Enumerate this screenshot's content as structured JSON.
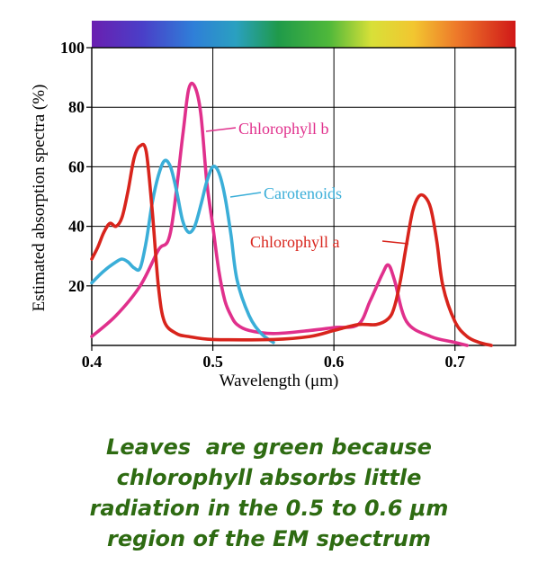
{
  "chart_data": {
    "type": "line",
    "xlabel": "Wavelength (μm)",
    "ylabel": "Estimated absorption spectra (%)",
    "xlim": [
      0.4,
      0.75
    ],
    "ylim": [
      0,
      100
    ],
    "x_ticks": [
      "0.4",
      "0.5",
      "0.6",
      "0.7"
    ],
    "y_ticks": [
      "20",
      "40",
      "60",
      "80",
      "100"
    ],
    "grid": true,
    "spectrum_bar": true,
    "series": [
      {
        "name": "Chlorophyll b",
        "color": "#e0308c",
        "x": [
          0.4,
          0.42,
          0.44,
          0.455,
          0.465,
          0.475,
          0.48,
          0.485,
          0.49,
          0.495,
          0.5,
          0.505,
          0.51,
          0.515,
          0.52,
          0.53,
          0.55,
          0.58,
          0.6,
          0.62,
          0.63,
          0.64,
          0.645,
          0.65,
          0.66,
          0.68,
          0.7,
          0.71
        ],
        "y": [
          3,
          10,
          20,
          32,
          38,
          70,
          86,
          87,
          78,
          55,
          40,
          25,
          15,
          10,
          7,
          5,
          4,
          5,
          6,
          7,
          15,
          24,
          27,
          22,
          8,
          3,
          1,
          0
        ]
      },
      {
        "name": "Carotenoids",
        "color": "#3aaed8",
        "x": [
          0.4,
          0.41,
          0.42,
          0.425,
          0.43,
          0.435,
          0.44,
          0.445,
          0.45,
          0.455,
          0.46,
          0.465,
          0.47,
          0.475,
          0.48,
          0.485,
          0.49,
          0.495,
          0.5,
          0.505,
          0.51,
          0.515,
          0.52,
          0.53,
          0.54,
          0.55
        ],
        "y": [
          21,
          25,
          28,
          29,
          28,
          26,
          26,
          35,
          48,
          57,
          62,
          60,
          52,
          42,
          38,
          40,
          47,
          55,
          60,
          58,
          50,
          37,
          22,
          10,
          4,
          1
        ]
      },
      {
        "name": "Chlorophyll a",
        "color": "#d8241c",
        "x": [
          0.4,
          0.405,
          0.41,
          0.415,
          0.42,
          0.425,
          0.43,
          0.435,
          0.44,
          0.445,
          0.45,
          0.455,
          0.46,
          0.47,
          0.48,
          0.5,
          0.55,
          0.58,
          0.6,
          0.62,
          0.635,
          0.645,
          0.65,
          0.655,
          0.66,
          0.665,
          0.67,
          0.675,
          0.68,
          0.685,
          0.69,
          0.7,
          0.71,
          0.72,
          0.73
        ],
        "y": [
          29,
          33,
          38,
          41,
          40,
          43,
          52,
          63,
          67,
          65,
          45,
          20,
          8,
          4,
          3,
          2,
          2,
          3,
          5,
          7,
          7,
          9,
          13,
          22,
          34,
          45,
          50,
          50,
          46,
          35,
          20,
          8,
          3,
          1,
          0
        ]
      }
    ],
    "labels": {
      "chl_b": "Chlorophyll b",
      "carotenoids": "Carotenoids",
      "chl_a": "Chlorophyll a"
    }
  },
  "caption": {
    "line1": "Leaves  are green because",
    "line2": "chlorophyll absorbs little",
    "line3": "radiation in the 0.5 to 0.6 μm",
    "line4": "region of the EM spectrum"
  }
}
